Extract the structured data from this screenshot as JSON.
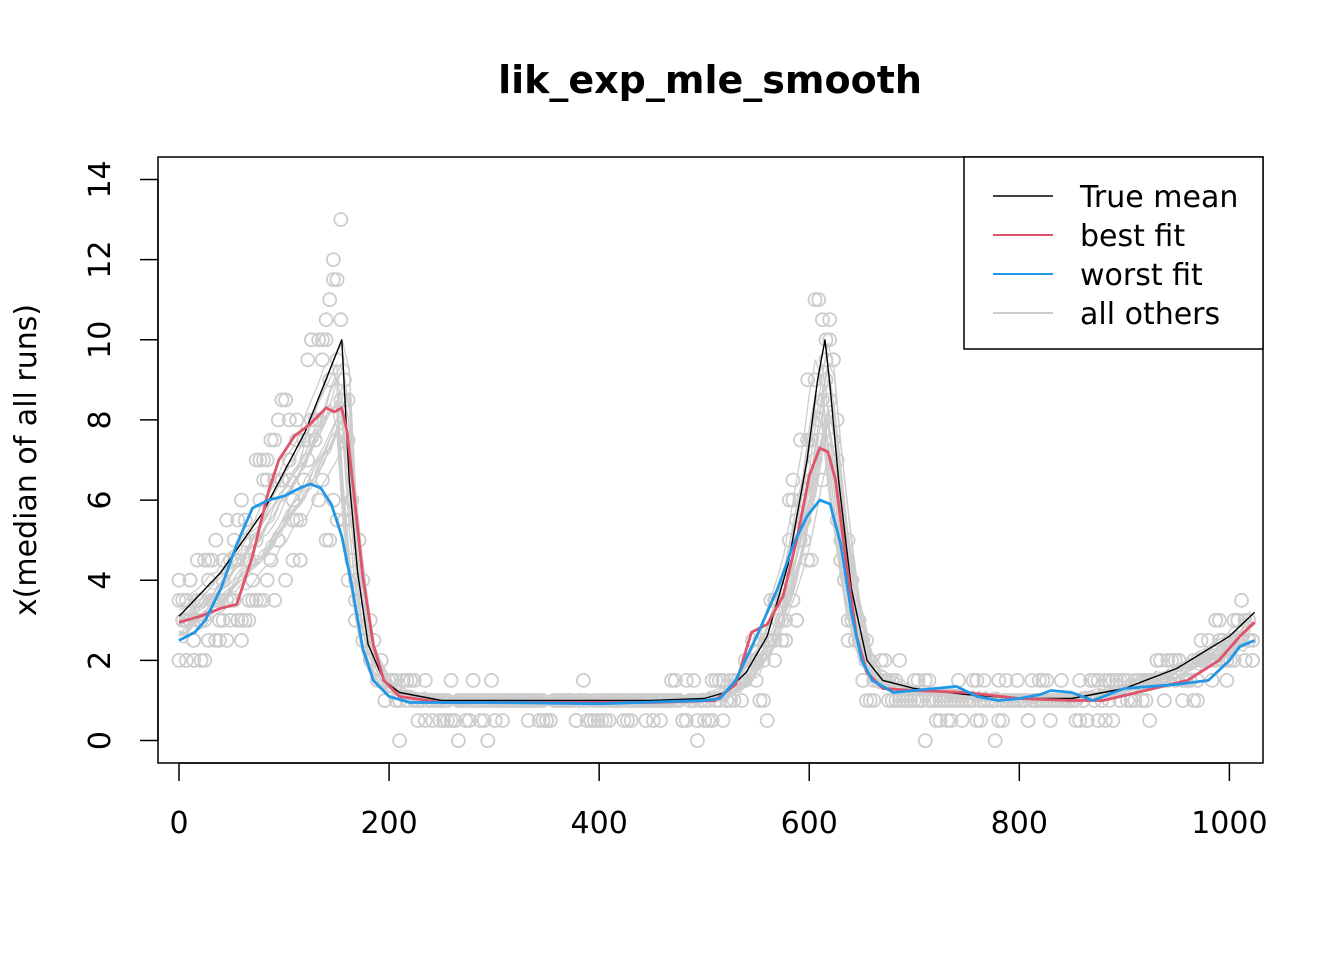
{
  "chart_data": {
    "type": "line",
    "title": "lik_exp_mle_smooth",
    "xlabel": "",
    "ylabel": "x(median of all runs)",
    "xlim": [
      -20,
      1032
    ],
    "ylim": [
      -0.56,
      14.56
    ],
    "x_ticks": [
      0,
      200,
      400,
      600,
      800,
      1000
    ],
    "y_ticks": [
      0,
      2,
      4,
      6,
      8,
      10,
      12,
      14
    ],
    "grid": false,
    "legend_position": "top-right",
    "series": [
      {
        "name": "True mean",
        "color": "#000000",
        "points": [
          [
            0,
            3.1
          ],
          [
            40,
            4.2
          ],
          [
            80,
            5.7
          ],
          [
            120,
            7.7
          ],
          [
            155,
            10.0
          ],
          [
            162,
            6.5
          ],
          [
            170,
            4.2
          ],
          [
            180,
            2.4
          ],
          [
            195,
            1.5
          ],
          [
            210,
            1.2
          ],
          [
            250,
            1.0
          ],
          [
            350,
            1.0
          ],
          [
            450,
            1.0
          ],
          [
            500,
            1.05
          ],
          [
            520,
            1.2
          ],
          [
            540,
            1.7
          ],
          [
            560,
            2.6
          ],
          [
            580,
            4.4
          ],
          [
            598,
            7.0
          ],
          [
            608,
            9.0
          ],
          [
            615,
            10.0
          ],
          [
            620,
            8.8
          ],
          [
            628,
            6.5
          ],
          [
            640,
            3.8
          ],
          [
            655,
            2.0
          ],
          [
            670,
            1.5
          ],
          [
            700,
            1.3
          ],
          [
            750,
            1.15
          ],
          [
            800,
            1.05
          ],
          [
            850,
            1.05
          ],
          [
            900,
            1.3
          ],
          [
            950,
            1.8
          ],
          [
            1000,
            2.6
          ],
          [
            1024,
            3.2
          ]
        ]
      },
      {
        "name": "best fit",
        "color": "#DF536B",
        "points": [
          [
            0,
            2.95
          ],
          [
            20,
            3.1
          ],
          [
            40,
            3.3
          ],
          [
            55,
            3.4
          ],
          [
            70,
            4.6
          ],
          [
            85,
            6.2
          ],
          [
            95,
            7.0
          ],
          [
            110,
            7.6
          ],
          [
            125,
            7.9
          ],
          [
            140,
            8.3
          ],
          [
            148,
            8.2
          ],
          [
            155,
            8.3
          ],
          [
            160,
            7.7
          ],
          [
            168,
            5.8
          ],
          [
            175,
            4.1
          ],
          [
            185,
            2.4
          ],
          [
            195,
            1.5
          ],
          [
            210,
            1.1
          ],
          [
            250,
            0.95
          ],
          [
            350,
            0.95
          ],
          [
            450,
            0.95
          ],
          [
            510,
            1.0
          ],
          [
            530,
            1.4
          ],
          [
            545,
            2.7
          ],
          [
            560,
            2.9
          ],
          [
            575,
            3.6
          ],
          [
            588,
            5.0
          ],
          [
            600,
            6.6
          ],
          [
            610,
            7.3
          ],
          [
            618,
            7.2
          ],
          [
            625,
            6.5
          ],
          [
            635,
            4.5
          ],
          [
            645,
            2.6
          ],
          [
            655,
            1.7
          ],
          [
            670,
            1.3
          ],
          [
            700,
            1.25
          ],
          [
            750,
            1.2
          ],
          [
            800,
            1.05
          ],
          [
            850,
            1.0
          ],
          [
            880,
            1.0
          ],
          [
            920,
            1.25
          ],
          [
            960,
            1.5
          ],
          [
            990,
            2.0
          ],
          [
            1010,
            2.6
          ],
          [
            1024,
            2.95
          ]
        ]
      },
      {
        "name": "worst fit",
        "color": "#2297E6",
        "points": [
          [
            0,
            2.5
          ],
          [
            15,
            2.7
          ],
          [
            25,
            3.0
          ],
          [
            40,
            3.8
          ],
          [
            55,
            4.9
          ],
          [
            70,
            5.8
          ],
          [
            85,
            6.0
          ],
          [
            100,
            6.1
          ],
          [
            115,
            6.3
          ],
          [
            125,
            6.4
          ],
          [
            135,
            6.3
          ],
          [
            145,
            5.9
          ],
          [
            155,
            5.1
          ],
          [
            165,
            3.8
          ],
          [
            175,
            2.3
          ],
          [
            185,
            1.5
          ],
          [
            200,
            1.1
          ],
          [
            220,
            0.95
          ],
          [
            300,
            0.95
          ],
          [
            400,
            0.92
          ],
          [
            500,
            1.0
          ],
          [
            515,
            1.05
          ],
          [
            530,
            1.5
          ],
          [
            550,
            2.6
          ],
          [
            570,
            3.8
          ],
          [
            585,
            4.9
          ],
          [
            598,
            5.6
          ],
          [
            610,
            6.0
          ],
          [
            620,
            5.9
          ],
          [
            630,
            4.9
          ],
          [
            640,
            3.2
          ],
          [
            650,
            2.0
          ],
          [
            660,
            1.5
          ],
          [
            680,
            1.2
          ],
          [
            720,
            1.3
          ],
          [
            740,
            1.35
          ],
          [
            760,
            1.1
          ],
          [
            780,
            1.0
          ],
          [
            800,
            1.05
          ],
          [
            820,
            1.15
          ],
          [
            830,
            1.25
          ],
          [
            850,
            1.2
          ],
          [
            870,
            1.0
          ],
          [
            900,
            1.3
          ],
          [
            950,
            1.4
          ],
          [
            980,
            1.5
          ],
          [
            1000,
            2.0
          ],
          [
            1010,
            2.35
          ],
          [
            1024,
            2.5
          ]
        ]
      },
      {
        "name": "all others",
        "color": "#CDCDCD",
        "points": []
      }
    ]
  }
}
